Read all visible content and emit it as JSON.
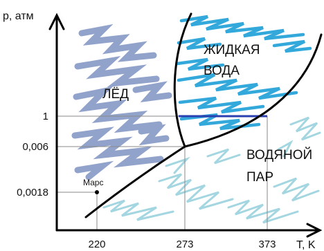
{
  "axes": {
    "y_label": "p, атм",
    "x_label": "T, K",
    "y_ticks": [
      "1",
      "0,006",
      "0,0018"
    ],
    "x_ticks": [
      "220",
      "273",
      "373"
    ]
  },
  "regions": {
    "ice": "ЛЁД",
    "liquid_line1": "ЖИДКАЯ",
    "liquid_line2": "ВОДА",
    "vapor_line1": "ВОДЯНОЙ",
    "vapor_line2": "ПАР"
  },
  "points": {
    "mars_label": "Марс"
  },
  "colors": {
    "ice": "#7f93c2",
    "liquid": "#1e9fd8",
    "vapor": "#9fd4df",
    "boiling_line": "#2a3fb0",
    "phase_lines": "#000000",
    "guides": "#8a8a8a"
  },
  "chart_data": {
    "type": "diagram",
    "x_ticks": [
      220,
      273,
      373
    ],
    "y_ticks": [
      1,
      0.006,
      0.0018
    ],
    "triple_point": {
      "T": 273,
      "p": 0.006
    },
    "boiling_segment": {
      "p": 1,
      "T_from": 273,
      "T_to": 373
    },
    "mars_point": {
      "T": 220,
      "p": 0.0018
    }
  }
}
